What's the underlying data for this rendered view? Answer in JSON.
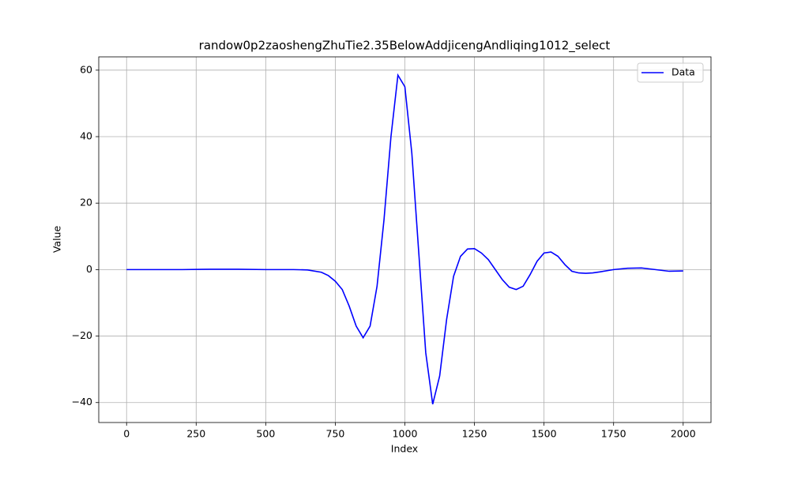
{
  "chart_data": {
    "type": "line",
    "title": "randow0p2zaoshengZhuTie2.35BelowAddjicengAndliqing1012_select",
    "x_label": "Index",
    "y_label": "Value",
    "x": [
      0,
      100,
      200,
      300,
      400,
      500,
      600,
      650,
      700,
      725,
      750,
      775,
      800,
      825,
      850,
      875,
      900,
      925,
      950,
      975,
      1000,
      1025,
      1050,
      1075,
      1100,
      1125,
      1150,
      1175,
      1200,
      1225,
      1250,
      1275,
      1300,
      1325,
      1350,
      1375,
      1400,
      1425,
      1450,
      1475,
      1500,
      1525,
      1550,
      1575,
      1600,
      1625,
      1650,
      1675,
      1700,
      1750,
      1800,
      1850,
      1900,
      1950,
      2000
    ],
    "series": [
      {
        "name": "Data",
        "color": "#0000ff",
        "values": [
          0,
          0,
          0,
          0.1,
          0.1,
          0,
          0,
          -0.1,
          -0.8,
          -1.8,
          -3.5,
          -6,
          -11,
          -17,
          -20.5,
          -17,
          -5,
          15,
          40,
          58.5,
          55,
          35,
          5,
          -25,
          -40.5,
          -32,
          -15,
          -2,
          4,
          6.2,
          6.3,
          5,
          3,
          0,
          -3,
          -5.3,
          -6,
          -5,
          -1.5,
          2.5,
          5,
          5.3,
          4,
          1.5,
          -0.5,
          -1,
          -1.1,
          -1,
          -0.7,
          0,
          0.4,
          0.5,
          0,
          -0.5,
          -0.4
        ]
      }
    ],
    "xlim": [
      -100,
      2100
    ],
    "ylim": [
      -46,
      64
    ],
    "xticks": [
      0,
      250,
      500,
      750,
      1000,
      1250,
      1500,
      1750,
      2000
    ],
    "yticks": [
      {
        "value": -40,
        "label": "−40"
      },
      {
        "value": -20,
        "label": "−20"
      },
      0,
      20,
      40,
      60
    ],
    "grid": true,
    "legend": "upper right"
  }
}
